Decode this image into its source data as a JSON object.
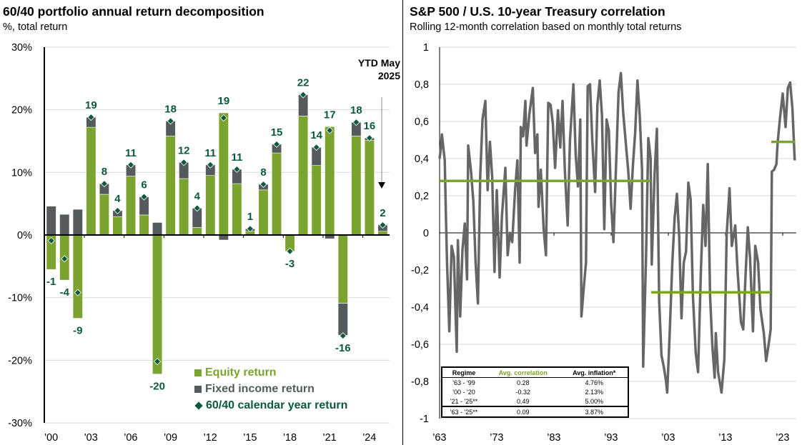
{
  "left": {
    "title": "60/40 portfolio annual return decomposition",
    "subtitle": "%, total return",
    "annotation": {
      "line1": "YTD May",
      "line2": "2025"
    },
    "legend": [
      "Equity return",
      "Fixed income return",
      "60/40 calendar year return"
    ]
  },
  "right": {
    "title": "S&P 500 / U.S. 10-year Treasury correlation",
    "subtitle": "Rolling 12-month correlation based on monthly total returns",
    "table": {
      "headers": [
        "Regime",
        "Avg. correlation",
        "Avg. inflation*"
      ],
      "rows": [
        [
          "'63 - '99",
          "0.28",
          "4.76%"
        ],
        [
          "'00 - '20",
          "-0.32",
          "2.13%"
        ],
        [
          "'21 - '25**",
          "0.49",
          "5.00%"
        ],
        [
          "'63 - '25**",
          "0.09",
          "3.87%"
        ]
      ]
    }
  },
  "colors": {
    "equity": "#7ba32f",
    "fixed_income": "#555a5c",
    "total": "#0b5a3b",
    "correlation": "#666666",
    "regime": "#7ba32f"
  },
  "chart_data": [
    {
      "type": "bar",
      "stacked": true,
      "title": "60/40 portfolio annual return decomposition",
      "subtitle": "%, total return",
      "categories": [
        "2000",
        "2001",
        "2002",
        "2003",
        "2004",
        "2005",
        "2006",
        "2007",
        "2008",
        "2009",
        "2010",
        "2011",
        "2012",
        "2013",
        "2014",
        "2015",
        "2016",
        "2017",
        "2018",
        "2019",
        "2020",
        "2021",
        "2022",
        "2023",
        "2024",
        "YTD May 2025"
      ],
      "xtick_labels": [
        "'00",
        "'03",
        "'06",
        "'09",
        "'12",
        "'15",
        "'18",
        "'21",
        "'24"
      ],
      "ytick_labels": [
        "30%",
        "20%",
        "10%",
        "0%",
        "-10%",
        "-20%",
        "-30%"
      ],
      "ylim": [
        -30,
        30
      ],
      "grid": true,
      "legend_position": "bottom-right",
      "series": [
        {
          "name": "Equity return",
          "values": [
            -5.5,
            -7.2,
            -13.3,
            17.2,
            6.5,
            2.9,
            9.4,
            3.2,
            -22.2,
            15.8,
            9.0,
            1.2,
            9.5,
            19.5,
            8.2,
            0.6,
            7.2,
            13.1,
            -2.6,
            19.0,
            11.1,
            17.3,
            -10.9,
            15.8,
            15.1,
            0.6
          ]
        },
        {
          "name": "Fixed income return",
          "values": [
            4.6,
            3.3,
            4.1,
            1.6,
            1.7,
            1.0,
            1.8,
            2.9,
            2.0,
            2.4,
            2.6,
            3.1,
            1.7,
            -0.8,
            2.3,
            0.4,
            0.9,
            1.4,
            0.0,
            3.4,
            2.9,
            -0.6,
            -5.1,
            2.2,
            0.4,
            1.0
          ]
        },
        {
          "name": "60/40 calendar year return",
          "type": "scatter",
          "values": [
            -0.9,
            -3.8,
            -9.2,
            18.8,
            8.2,
            3.9,
            11.2,
            6.1,
            -20.2,
            18.2,
            11.6,
            4.3,
            11.2,
            18.7,
            10.5,
            1.0,
            8.1,
            14.5,
            -2.6,
            22.4,
            14.0,
            16.7,
            -16.1,
            18.0,
            15.5,
            1.6
          ]
        }
      ],
      "data_labels": [
        "-1",
        "-4",
        "-9",
        "19",
        "8",
        "4",
        "11",
        "6",
        "-20",
        "18",
        "12",
        "4",
        "11",
        "19",
        "11",
        "1",
        "8",
        "15",
        "-3",
        "22",
        "14",
        "17",
        "-16",
        "18",
        "16",
        "2"
      ]
    },
    {
      "type": "line",
      "title": "S&P 500 / U.S. 10-year Treasury correlation",
      "subtitle": "Rolling 12-month correlation based on monthly total returns",
      "xlim": [
        1963,
        2025.3
      ],
      "ylim": [
        -1,
        1
      ],
      "grid": true,
      "xtick_labels": [
        "'63",
        "'73",
        "'83",
        "'93",
        "'03",
        "'13",
        "'23"
      ],
      "xtick_values": [
        1963,
        1973,
        1983,
        1993,
        2003,
        2013,
        2023
      ],
      "ytick_labels": [
        "1",
        "0,8",
        "0,6",
        "0,4",
        "0,2",
        "0",
        "-0,2",
        "-0,4",
        "-0,6",
        "-0,8",
        "-1"
      ],
      "ytick_values": [
        1,
        0.8,
        0.6,
        0.4,
        0.2,
        0,
        -0.2,
        -0.4,
        -0.6,
        -0.8,
        -1
      ],
      "series": [
        {
          "points": [
            [
              1963.0,
              0.4
            ],
            [
              1963.2,
              0.45
            ],
            [
              1963.4,
              0.53
            ],
            [
              1963.9,
              0.39
            ],
            [
              1964.1,
              0.1
            ],
            [
              1964.3,
              -0.16
            ],
            [
              1964.7,
              -0.53
            ],
            [
              1965.1,
              -0.07
            ],
            [
              1965.5,
              -0.13
            ],
            [
              1966.0,
              -0.64
            ],
            [
              1966.2,
              -0.04
            ],
            [
              1966.6,
              -0.45
            ],
            [
              1967.0,
              -0.09
            ],
            [
              1967.4,
              0.05
            ],
            [
              1967.8,
              -0.25
            ],
            [
              1968.0,
              0.47
            ],
            [
              1968.5,
              0.33
            ],
            [
              1968.9,
              0.17
            ],
            [
              1969.3,
              -0.16
            ],
            [
              1969.7,
              -0.38
            ],
            [
              1970.1,
              0.3
            ],
            [
              1970.5,
              0.61
            ],
            [
              1971.0,
              0.71
            ],
            [
              1971.4,
              0.23
            ],
            [
              1971.8,
              0.49
            ],
            [
              1972.2,
              0.3
            ],
            [
              1972.6,
              -0.21
            ],
            [
              1973.0,
              0.23
            ],
            [
              1973.5,
              -0.24
            ],
            [
              1973.9,
              0.09
            ],
            [
              1974.5,
              0.35
            ],
            [
              1974.9,
              -0.12
            ],
            [
              1975.3,
              0.0
            ],
            [
              1975.7,
              -0.05
            ],
            [
              1976.2,
              0.23
            ],
            [
              1976.6,
              0.39
            ],
            [
              1977.0,
              -0.16
            ],
            [
              1977.2,
              0.57
            ],
            [
              1977.6,
              0.52
            ],
            [
              1978.0,
              0.71
            ],
            [
              1978.2,
              0.47
            ],
            [
              1978.7,
              0.64
            ],
            [
              1979.3,
              0.78
            ],
            [
              1979.7,
              0.43
            ],
            [
              1980.1,
              0.53
            ],
            [
              1980.3,
              0.14
            ],
            [
              1980.7,
              0.34
            ],
            [
              1981.2,
              0.02
            ],
            [
              1981.6,
              -0.12
            ],
            [
              1982.0,
              0.7
            ],
            [
              1982.4,
              0.69
            ],
            [
              1982.8,
              0.59
            ],
            [
              1983.2,
              0.35
            ],
            [
              1983.7,
              0.66
            ],
            [
              1984.1,
              0.46
            ],
            [
              1984.5,
              0.71
            ],
            [
              1984.9,
              0.34
            ],
            [
              1985.4,
              0.04
            ],
            [
              1985.8,
              0.5
            ],
            [
              1986.4,
              0.8
            ],
            [
              1986.8,
              0.42
            ],
            [
              1987.2,
              0.25
            ],
            [
              1987.6,
              0.61
            ],
            [
              1987.8,
              -0.45
            ],
            [
              1988.2,
              -0.3
            ],
            [
              1988.6,
              -0.16
            ],
            [
              1988.9,
              0.79
            ],
            [
              1989.3,
              0.8
            ],
            [
              1989.7,
              0.5
            ],
            [
              1990.2,
              0.22
            ],
            [
              1990.6,
              0.69
            ],
            [
              1991.0,
              0.82
            ],
            [
              1991.4,
              0.63
            ],
            [
              1991.8,
              0.02
            ],
            [
              1992.2,
              0.61
            ],
            [
              1992.6,
              0.55
            ],
            [
              1993.0,
              0.16
            ],
            [
              1993.4,
              -0.05
            ],
            [
              1993.9,
              0.4
            ],
            [
              1994.3,
              0.76
            ],
            [
              1994.7,
              0.86
            ],
            [
              1995.1,
              0.65
            ],
            [
              1995.6,
              0.47
            ],
            [
              1996.0,
              0.33
            ],
            [
              1996.4,
              0.13
            ],
            [
              1996.8,
              0.36
            ],
            [
              1997.2,
              0.54
            ],
            [
              1997.6,
              0.82
            ],
            [
              1998.0,
              0.63
            ],
            [
              1998.4,
              0.34
            ],
            [
              1998.6,
              -0.72
            ],
            [
              1999.1,
              -0.13
            ],
            [
              1999.5,
              0.51
            ],
            [
              1999.9,
              0.4
            ],
            [
              2000.1,
              -0.17
            ],
            [
              2000.6,
              0.32
            ],
            [
              2001.0,
              0.56
            ],
            [
              2001.4,
              -0.37
            ],
            [
              2001.8,
              -0.66
            ],
            [
              2002.2,
              -0.72
            ],
            [
              2002.6,
              -0.8
            ],
            [
              2002.8,
              -0.86
            ],
            [
              2003.2,
              -0.57
            ],
            [
              2003.7,
              -0.16
            ],
            [
              2004.1,
              0.08
            ],
            [
              2004.5,
              0.21
            ],
            [
              2004.9,
              -0.02
            ],
            [
              2005.3,
              -0.46
            ],
            [
              2005.7,
              -0.16
            ],
            [
              2006.1,
              -0.1
            ],
            [
              2006.5,
              0.27
            ],
            [
              2006.9,
              0.18
            ],
            [
              2007.3,
              -0.34
            ],
            [
              2007.8,
              -0.65
            ],
            [
              2008.2,
              -0.75
            ],
            [
              2008.7,
              -0.2
            ],
            [
              2009.1,
              0.15
            ],
            [
              2009.5,
              -0.07
            ],
            [
              2009.9,
              0.37
            ],
            [
              2010.3,
              -0.34
            ],
            [
              2010.7,
              -0.61
            ],
            [
              2011.1,
              -0.78
            ],
            [
              2011.3,
              -0.54
            ],
            [
              2011.7,
              -0.75
            ],
            [
              2012.3,
              -0.86
            ],
            [
              2012.8,
              -0.68
            ],
            [
              2013.2,
              -0.01
            ],
            [
              2013.7,
              0.24
            ],
            [
              2014.1,
              -0.07
            ],
            [
              2014.7,
              0.04
            ],
            [
              2015.1,
              -0.2
            ],
            [
              2015.7,
              -0.48
            ],
            [
              2016.1,
              -0.52
            ],
            [
              2016.5,
              -0.23
            ],
            [
              2016.9,
              0.03
            ],
            [
              2017.3,
              -0.14
            ],
            [
              2017.8,
              -0.53
            ],
            [
              2018.2,
              -0.07
            ],
            [
              2018.7,
              -0.16
            ],
            [
              2019.1,
              -0.41
            ],
            [
              2019.7,
              -0.54
            ],
            [
              2020.1,
              -0.69
            ],
            [
              2020.5,
              -0.61
            ],
            [
              2020.9,
              -0.52
            ],
            [
              2021.1,
              0.33
            ],
            [
              2021.5,
              0.34
            ],
            [
              2021.9,
              0.37
            ],
            [
              2022.1,
              0.48
            ],
            [
              2022.5,
              0.61
            ],
            [
              2023.0,
              0.75
            ],
            [
              2023.5,
              0.57
            ],
            [
              2023.9,
              0.78
            ],
            [
              2024.3,
              0.81
            ],
            [
              2024.7,
              0.67
            ],
            [
              2025.1,
              0.39
            ]
          ]
        }
      ],
      "regime_averages": [
        {
          "from": 1963,
          "to": 1999.9,
          "value": 0.28
        },
        {
          "from": 2000,
          "to": 2020.9,
          "value": -0.32
        },
        {
          "from": 2021,
          "to": 2025.2,
          "value": 0.49
        }
      ]
    }
  ]
}
